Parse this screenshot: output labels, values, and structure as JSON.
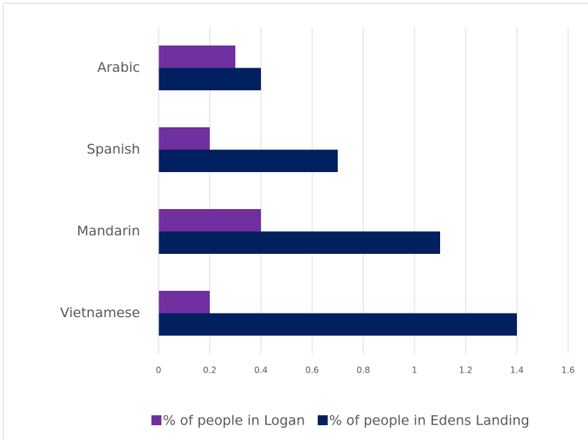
{
  "chart_data": {
    "type": "bar",
    "orientation": "horizontal",
    "categories": [
      "Arabic",
      "Spanish",
      "Mandarin",
      "Vietnamese"
    ],
    "series": [
      {
        "name": "% of people in Logan",
        "color": "#7030a0",
        "values": [
          0.3,
          0.2,
          0.4,
          0.2
        ]
      },
      {
        "name": "% of people in Edens Landing",
        "color": "#002060",
        "values": [
          0.4,
          0.7,
          1.1,
          1.4
        ]
      }
    ],
    "xlim": [
      0,
      1.6
    ],
    "xticks": [
      0,
      0.2,
      0.4,
      0.6,
      0.8,
      1,
      1.2,
      1.4,
      1.6
    ],
    "grid": true,
    "legend": "bottom"
  }
}
